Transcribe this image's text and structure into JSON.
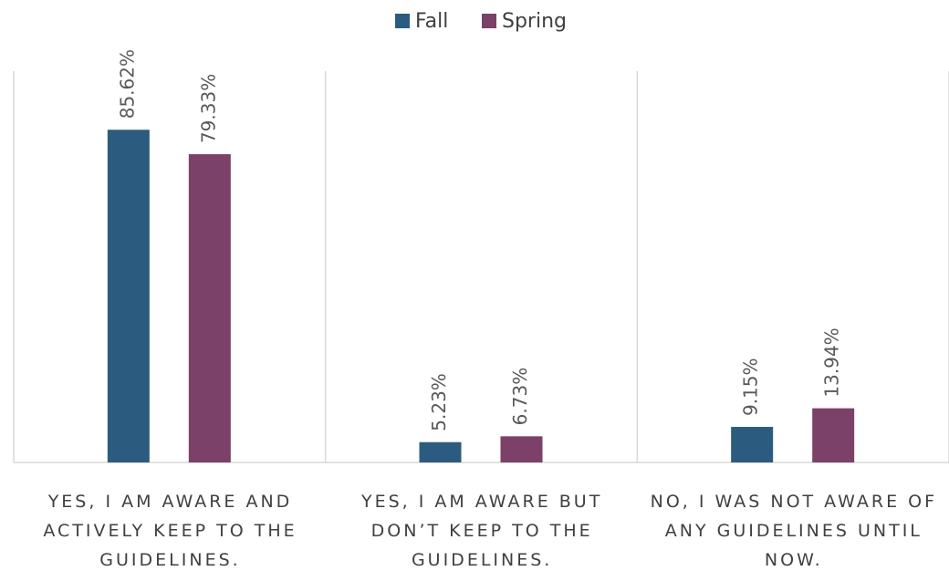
{
  "chart_data": {
    "type": "bar",
    "categories": [
      "YES, I AM AWARE AND ACTIVELY KEEP TO THE GUIDELINES.",
      "YES, I AM AWARE BUT DON’T KEEP TO THE GUIDELINES.",
      "NO, I WAS NOT AWARE OF ANY GUIDELINES UNTIL NOW."
    ],
    "series": [
      {
        "name": "Fall",
        "color": "#2b5c7f",
        "values": [
          85.62,
          5.23,
          9.15
        ],
        "value_labels": [
          "85.62%",
          "5.23%",
          "9.15%"
        ]
      },
      {
        "name": "Spring",
        "color": "#7b4168",
        "values": [
          79.33,
          6.73,
          13.94
        ],
        "value_labels": [
          "79.33%",
          "6.73%",
          "13.94%"
        ]
      }
    ],
    "ylim": [
      0,
      100
    ],
    "legend": "top"
  }
}
